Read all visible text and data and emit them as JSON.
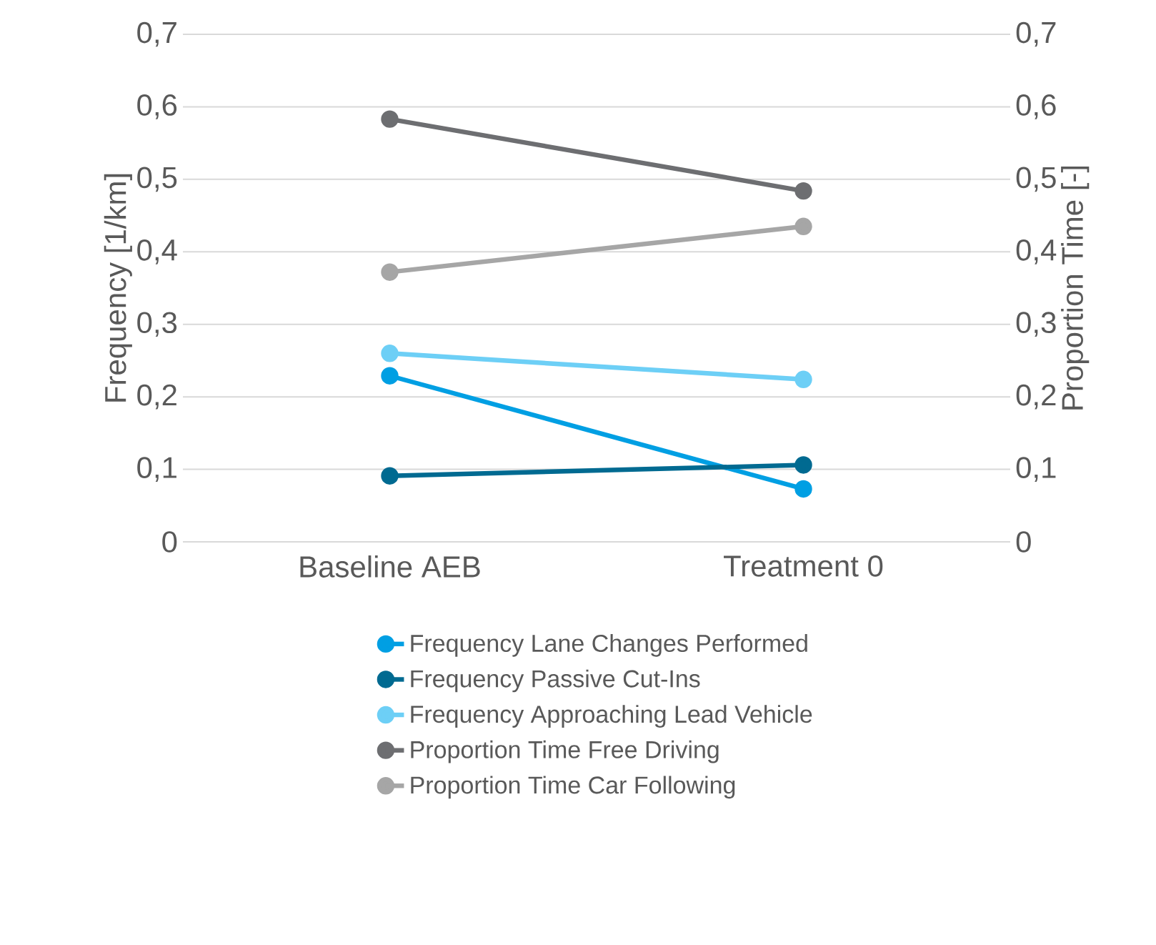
{
  "chart_data": {
    "type": "line",
    "categories": [
      "Baseline AEB",
      "Treatment 0"
    ],
    "ylabel": "Frequency  [1/km]",
    "y2label": "Proportion Time [-]",
    "ylim": [
      0,
      0.7
    ],
    "yticks": [
      0,
      {
        "value": 0.1,
        "label": "0,1"
      },
      {
        "value": 0.2,
        "label": "0,2"
      },
      {
        "value": 0.3,
        "label": "0,3"
      },
      {
        "value": 0.4,
        "label": "0,4"
      },
      {
        "value": 0.5,
        "label": "0,5"
      },
      {
        "value": 0.6,
        "label": "0,6"
      },
      {
        "value": 0.7,
        "label": "0,7"
      }
    ],
    "y2lim": [
      0,
      0.7
    ],
    "y2ticks": [
      0,
      {
        "value": 0.1,
        "label": "0,1"
      },
      {
        "value": 0.2,
        "label": "0,2"
      },
      {
        "value": 0.3,
        "label": "0,3"
      },
      {
        "value": 0.4,
        "label": "0,4"
      },
      {
        "value": 0.5,
        "label": "0,5"
      },
      {
        "value": 0.6,
        "label": "0,6"
      },
      {
        "value": 0.7,
        "label": "0,7"
      }
    ],
    "series": [
      {
        "name": "Frequency Lane Changes Performed",
        "color": "#009fe3",
        "values": [
          0.229,
          0.073
        ]
      },
      {
        "name": "Frequency Passive Cut-Ins",
        "color": "#006a91",
        "values": [
          0.091,
          0.106
        ]
      },
      {
        "name": "Frequency Approaching Lead Vehicle",
        "color": "#6dcff6",
        "values": [
          0.26,
          0.224
        ]
      },
      {
        "name": "Proportion Time Free Driving",
        "color": "#6d6e71",
        "values": [
          0.583,
          0.484
        ],
        "axis": "y2"
      },
      {
        "name": "Proportion Time Car Following",
        "color": "#a6a6a6",
        "values": [
          0.372,
          0.435
        ],
        "axis": "y2"
      }
    ],
    "grid": "y",
    "marker": "circle",
    "line_style": "solid",
    "legend": "bottom"
  }
}
